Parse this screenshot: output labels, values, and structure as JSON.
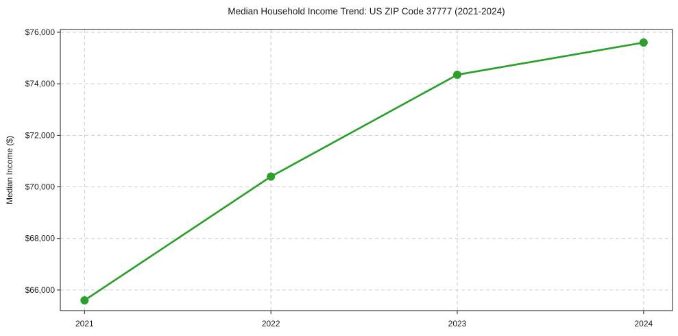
{
  "chart_data": {
    "type": "line",
    "title": "Median Household Income Trend: US ZIP Code 37777 (2021-2024)",
    "xlabel": "",
    "ylabel": "Median Income ($)",
    "categories": [
      2021,
      2022,
      2023,
      2024
    ],
    "values": [
      65600,
      70400,
      74350,
      75600
    ],
    "xticks": [
      2021,
      2022,
      2023,
      2024
    ],
    "xtick_labels": [
      "2021",
      "2022",
      "2023",
      "2024"
    ],
    "yticks": [
      66000,
      68000,
      70000,
      72000,
      74000,
      76000
    ],
    "ytick_labels": [
      "$66,000",
      "$68,000",
      "$70,000",
      "$72,000",
      "$74,000",
      "$76,000"
    ],
    "xlim": [
      2020.87,
      2024.155
    ],
    "ylim": [
      65200,
      76106
    ],
    "grid": true,
    "grid_style": "dashed",
    "legend": "none",
    "marker": "circle",
    "line_width": 2.7,
    "marker_radius": 6,
    "colors": {
      "line": "#2ca02c",
      "marker": "#2ca02c",
      "grid": "#cccccc",
      "axis": "#1a1a1a",
      "text": "#1a1a1a",
      "background": "#ffffff"
    }
  }
}
